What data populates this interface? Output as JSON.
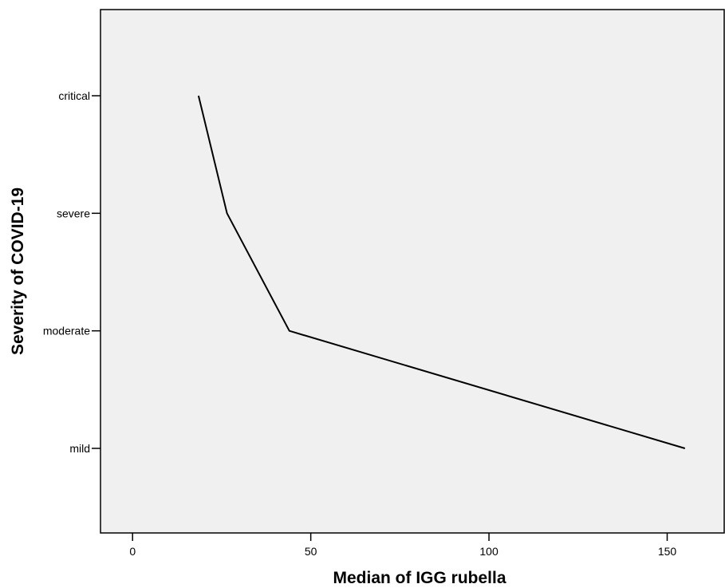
{
  "chart_data": {
    "type": "line",
    "xlabel": "Median of IGG rubella",
    "ylabel": "Severity of COVID-19",
    "categories": [
      "mild",
      "moderate",
      "severe",
      "critical"
    ],
    "x_ticks": [
      0,
      50,
      100,
      150
    ],
    "xlim": [
      -9,
      166
    ],
    "grid": false,
    "legend": "none",
    "series": [
      {
        "points": [
          {
            "x": 18.5,
            "y": "critical"
          },
          {
            "x": 26.5,
            "y": "severe"
          },
          {
            "x": 44,
            "y": "moderate"
          },
          {
            "x": 155,
            "y": "mild"
          }
        ]
      }
    ],
    "colors": {
      "plot_background": "#f0f0f0",
      "line": "#000000",
      "axis": "#000000"
    }
  }
}
